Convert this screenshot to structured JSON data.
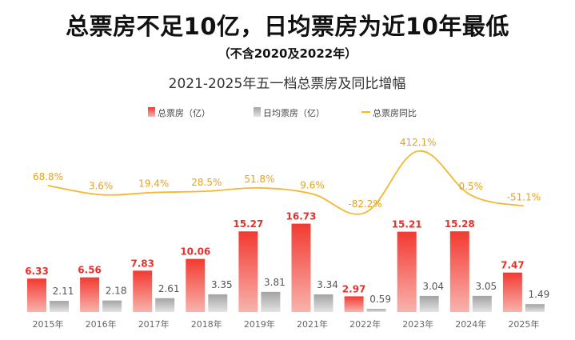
{
  "headline": "总票房不足10亿，日均票房为近10年最低",
  "subheadline": "（不含2020及2022年）",
  "chart_data": {
    "type": "bar",
    "title": "2021-2025年五一档总票房及同比增幅",
    "categories": [
      "2015年",
      "2016年",
      "2017年",
      "2018年",
      "2019年",
      "2021年",
      "2022年",
      "2023年",
      "2024年",
      "2025年"
    ],
    "series": [
      {
        "name": "总票房（亿）",
        "type": "bar",
        "values": [
          6.33,
          6.56,
          7.83,
          10.06,
          15.27,
          16.73,
          2.97,
          15.21,
          15.28,
          7.47
        ],
        "labels": [
          "6.33",
          "6.56",
          "7.83",
          "10.06",
          "15.27",
          "16.73",
          "2.97",
          "15.21",
          "15.28",
          "7.47"
        ]
      },
      {
        "name": "日均票房（亿）",
        "type": "bar",
        "values": [
          2.11,
          2.18,
          2.61,
          3.35,
          3.81,
          3.34,
          0.59,
          3.04,
          3.05,
          1.49
        ],
        "labels": [
          "2.11",
          "2.18",
          "2.61",
          "3.35",
          "3.81",
          "3.34",
          "0.59",
          "3.04",
          "3.05",
          "1.49"
        ]
      },
      {
        "name": "总票房同比",
        "type": "line",
        "values": [
          68.8,
          3.6,
          19.4,
          28.5,
          51.8,
          9.6,
          -82.2,
          412.1,
          0.5,
          -51.1
        ],
        "labels": [
          "68.8%",
          "3.6%",
          "19.4%",
          "28.5%",
          "51.8%",
          "9.6%",
          "-82.2%",
          "412.1%",
          "0.5%",
          "-51.1%"
        ]
      }
    ],
    "legend": "top-center",
    "grid": false,
    "colors": {
      "total": "#e8302a",
      "daily": "#a9a9a9",
      "line": "#f5b630",
      "total_label": "#e8302a",
      "daily_label": "#555555",
      "line_label": "#e8a21a"
    }
  }
}
